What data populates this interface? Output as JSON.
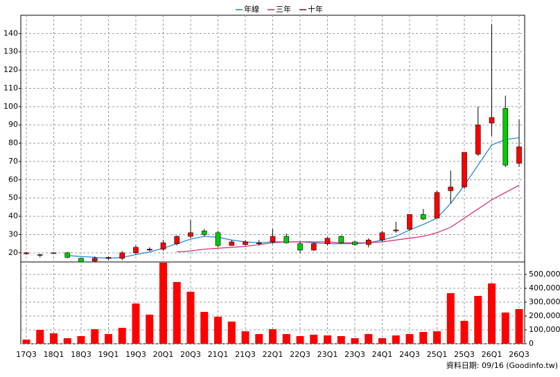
{
  "chart_data": {
    "type": "candlestick",
    "categories": [
      "17Q3",
      null,
      "18Q1",
      null,
      "18Q3",
      null,
      "19Q1",
      null,
      "19Q3",
      null,
      "20Q1",
      null,
      "20Q3",
      null,
      "21Q1",
      null,
      "21Q3",
      null,
      "22Q1",
      null,
      "22Q3",
      null,
      "23Q1",
      null,
      "23Q3",
      null,
      "24Q1",
      null,
      "24Q3",
      null,
      "25Q1",
      null,
      "25Q3",
      null,
      "26Q1",
      null,
      "26Q3"
    ],
    "open": [
      19.5,
      19,
      20,
      20,
      17,
      15.5,
      17,
      17,
      20,
      21.5,
      22,
      25,
      29,
      32,
      31,
      24,
      24.5,
      25,
      26,
      29,
      25,
      21.5,
      25,
      29,
      26,
      24.5,
      27,
      32,
      33,
      41,
      39,
      54,
      56,
      74,
      91,
      99,
      69
    ],
    "high": [
      20.5,
      19.5,
      20,
      20.5,
      17,
      18,
      18,
      21,
      24,
      23,
      27,
      29.5,
      38,
      33,
      32,
      27,
      27,
      27,
      33,
      30.5,
      26,
      25.5,
      28.5,
      29.5,
      26.5,
      28,
      32,
      37,
      41,
      44,
      54,
      65,
      75,
      100,
      145,
      106,
      93
    ],
    "low": [
      19,
      17.5,
      19.5,
      17,
      15,
      15,
      16,
      16,
      19,
      21,
      21,
      24,
      28,
      29,
      23,
      24,
      24,
      24,
      25,
      25,
      20,
      21,
      24,
      25,
      24,
      23,
      26,
      31,
      32,
      38,
      39,
      47,
      55,
      73,
      84,
      67,
      67
    ],
    "close": [
      20,
      19,
      20,
      17.5,
      15,
      17,
      17.5,
      20,
      23,
      22,
      25.5,
      29,
      31,
      30,
      24,
      26,
      26,
      25.5,
      29,
      25.5,
      21.5,
      25,
      28,
      25.5,
      24.5,
      27,
      31,
      32.5,
      41,
      38.5,
      53,
      56,
      75,
      90,
      94,
      68,
      78
    ],
    "up_color": "#ff0000",
    "down_color": "#00cc00",
    "series": [
      {
        "name": "年線",
        "color": "#1e7fd8",
        "values": [
          null,
          null,
          null,
          18.5,
          18,
          17.5,
          17,
          17.5,
          19,
          20.5,
          22.5,
          25,
          27.5,
          29,
          28.5,
          27,
          26,
          25.5,
          26,
          26,
          26,
          25.5,
          25,
          25,
          25,
          25.5,
          27,
          29,
          32.5,
          35.5,
          39,
          47,
          57,
          68,
          79,
          82,
          83
        ]
      },
      {
        "name": "三年",
        "color": "#d6246e",
        "values": [
          null,
          null,
          null,
          null,
          null,
          null,
          null,
          null,
          null,
          null,
          null,
          20.5,
          21,
          22,
          22.5,
          23,
          23.5,
          24.5,
          25.5,
          26,
          26,
          26,
          26,
          25.5,
          25.5,
          25.5,
          26,
          27,
          28,
          29,
          31,
          34,
          39,
          44,
          49,
          53,
          57
        ]
      },
      {
        "name": "十年",
        "color": "#800040",
        "values": [
          null,
          null,
          null,
          null,
          null,
          null,
          null,
          null,
          null,
          null,
          null,
          null,
          null,
          null,
          null,
          null,
          null,
          null,
          null,
          null,
          null,
          null,
          null,
          null,
          null,
          null,
          null,
          null,
          null,
          null,
          null,
          null,
          null,
          null,
          null,
          null,
          null
        ]
      }
    ],
    "ylim": [
      15,
      150
    ],
    "yticks": [
      20,
      30,
      40,
      50,
      60,
      70,
      80,
      90,
      100,
      110,
      120,
      130,
      140
    ],
    "volume": {
      "color": "#ff0000",
      "values": [
        30000,
        100000,
        75000,
        40000,
        55000,
        105000,
        70000,
        115000,
        290000,
        210000,
        585000,
        445000,
        375000,
        230000,
        195000,
        160000,
        90000,
        70000,
        105000,
        70000,
        55000,
        65000,
        60000,
        55000,
        40000,
        70000,
        40000,
        60000,
        70000,
        85000,
        90000,
        365000,
        165000,
        345000,
        435000,
        225000,
        250000
      ],
      "ylim": [
        0,
        590000
      ],
      "yticks": [
        0,
        {
          "value": 100000,
          "label": "100,000"
        },
        {
          "value": 200000,
          "label": "200,000"
        },
        {
          "value": 300000,
          "label": "300,000"
        },
        {
          "value": 400000,
          "label": "400,000"
        },
        {
          "value": 500000,
          "label": "500,000"
        }
      ]
    },
    "grid": true,
    "source": "資料日期: 09/16 (Goodinfo.tw)"
  }
}
